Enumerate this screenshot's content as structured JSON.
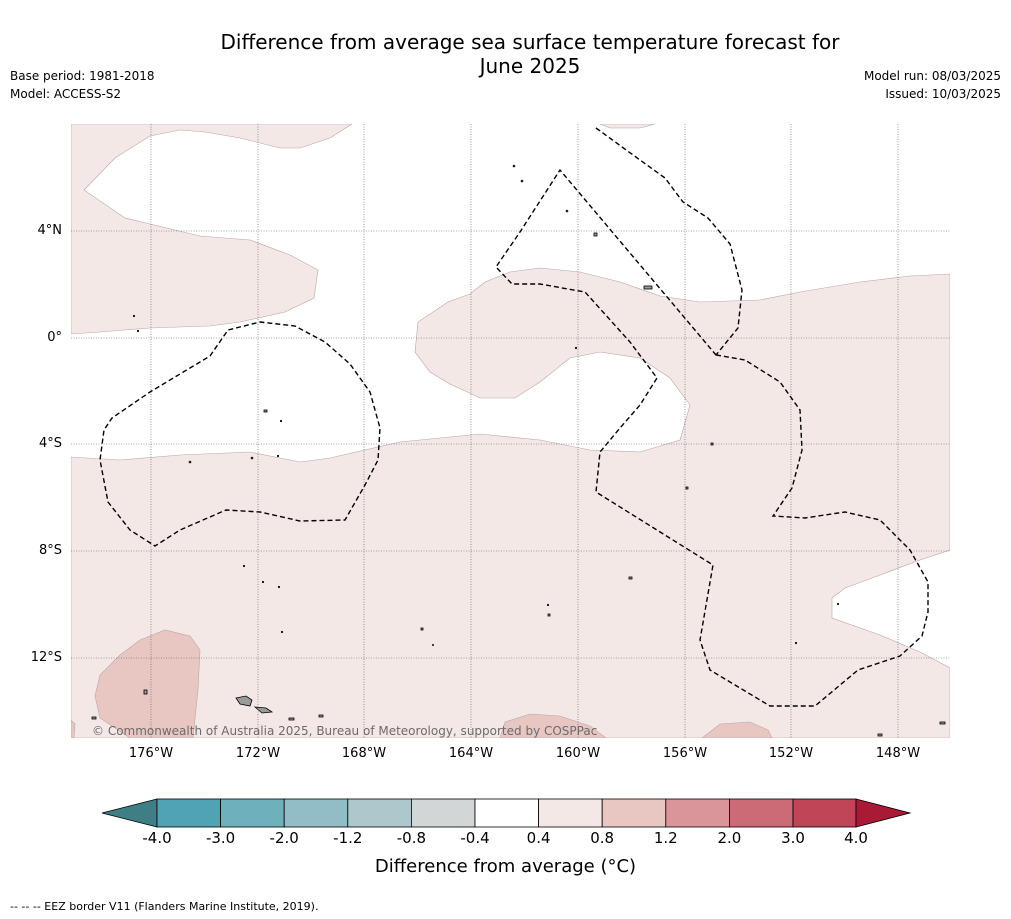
{
  "header": {
    "title_line1": "Difference from average sea surface temperature forecast for",
    "title_line2": "June 2025",
    "base_period": "Base period: 1981-2018",
    "model": "Model: ACCESS-S2",
    "model_run": "Model run: 08/03/2025",
    "issued": "Issued: 10/03/2025"
  },
  "map": {
    "lat_labels": [
      "4°N",
      "0°",
      "4°S",
      "8°S",
      "12°S"
    ],
    "lon_labels": [
      "176°W",
      "172°W",
      "168°W",
      "164°W",
      "160°W",
      "156°W",
      "152°W",
      "148°W"
    ],
    "copyright": "© Commonwealth of Australia 2025, Bureau of Meteorology, supported by COSPPac",
    "colors": {
      "band_0_4_to_0_8": "#f4e8e7",
      "band_0_8_to_1_2": "#e8c7c3",
      "land": "#9a9a9a",
      "eez_border": "#000000"
    }
  },
  "colorbar": {
    "title": "Difference from average (°C)",
    "ticks": [
      "-4.0",
      "-3.0",
      "-2.0",
      "-1.2",
      "-0.8",
      "-0.4",
      "0.4",
      "0.8",
      "1.2",
      "2.0",
      "3.0",
      "4.0"
    ],
    "colors": [
      "#3e7f86",
      "#4fa3b2",
      "#6fb0bd",
      "#92bcc6",
      "#adc8cd",
      "#d3d6d6",
      "#ffffff",
      "#f4e8e7",
      "#e8c7c3",
      "#d9959a",
      "#cc6b76",
      "#c04657",
      "#a81a35"
    ]
  },
  "footnote": "--  --  -- EEZ border V11 (Flanders Marine Institute, 2019)."
}
